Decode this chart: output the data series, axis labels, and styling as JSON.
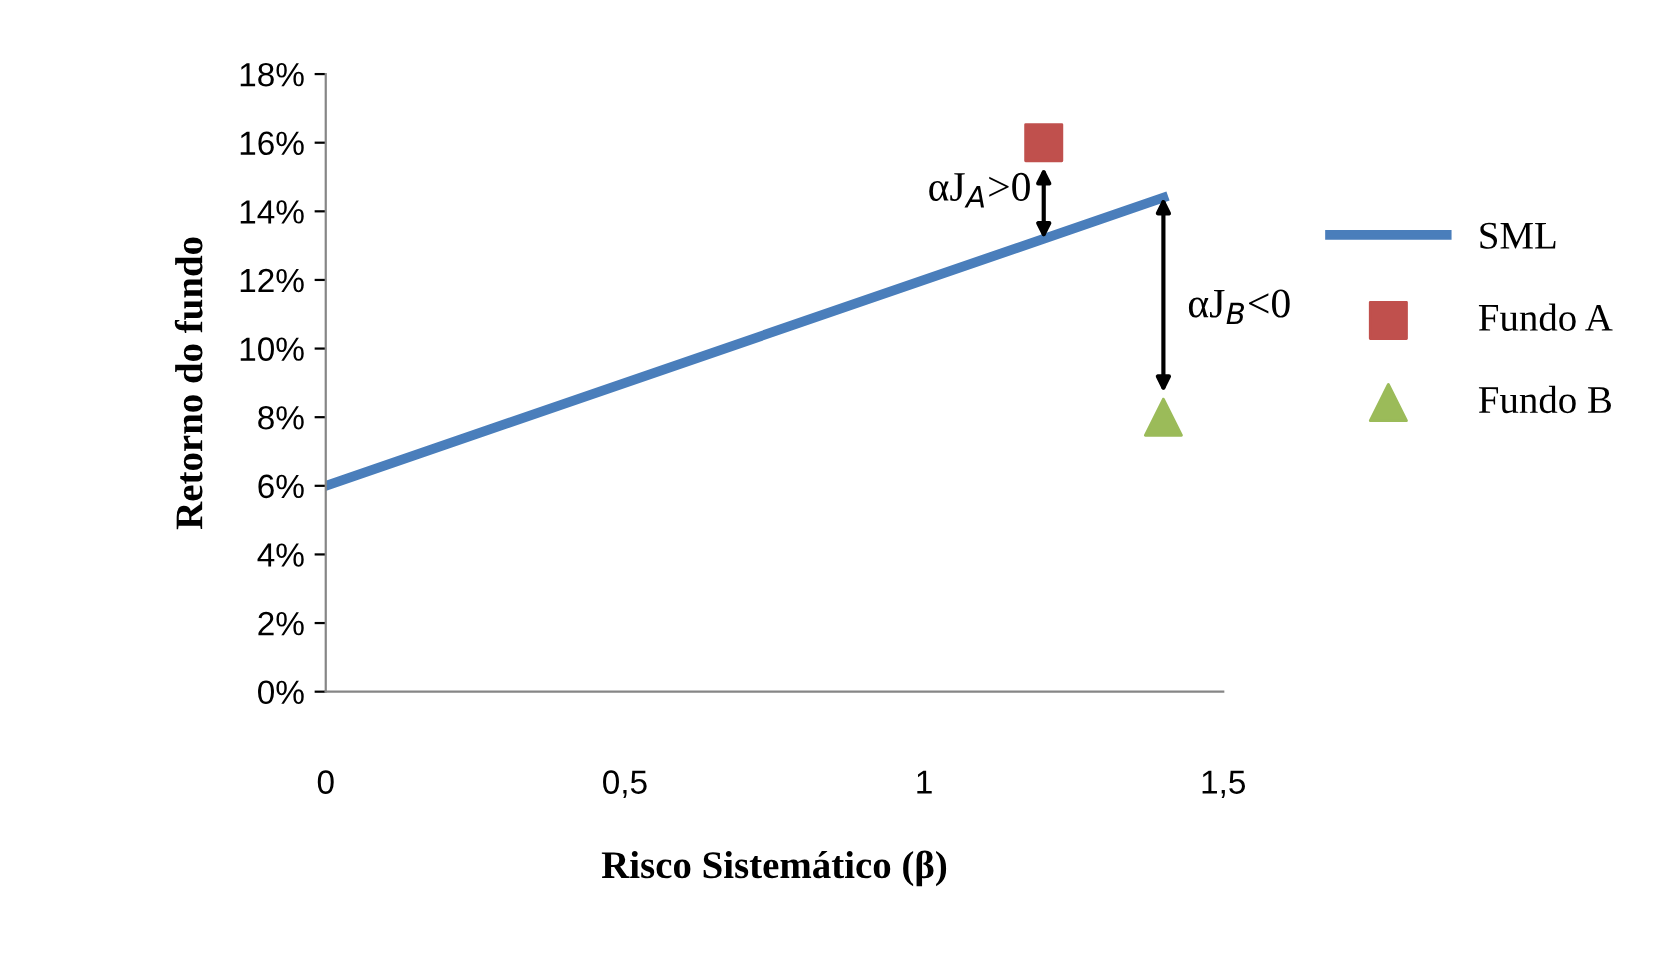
{
  "chart_data": {
    "type": "line",
    "xlabel": "Risco Sistemático (β)",
    "ylabel": "Retorno do fundo",
    "series": [
      {
        "name": "SML",
        "color": "#4a7ebb",
        "x": [
          0,
          1.4
        ],
        "values": [
          6,
          14.4
        ],
        "marker": "none"
      },
      {
        "name": "Fundo A",
        "type": "scatter",
        "color": "#c0504d",
        "x": [
          1.2
        ],
        "values": [
          16
        ],
        "marker": "square"
      },
      {
        "name": "Fundo B",
        "type": "scatter",
        "color": "#9bbb59",
        "x": [
          1.4
        ],
        "values": [
          8
        ],
        "marker": "triangle"
      }
    ],
    "annotations": [
      {
        "text": "αJ$_{A}$>0",
        "x": 1.2,
        "y": 16
      },
      {
        "text": "αJ$_{B}$<0",
        "x": 1.4,
        "y": 8
      }
    ],
    "xlim": [
      0,
      1.5
    ],
    "xticks": [
      0,
      {
        "value": 0.5,
        "label": "0,5"
      },
      1,
      {
        "value": 1.5,
        "label": "1,5"
      }
    ],
    "ylim": [
      0,
      18
    ],
    "yticks": [
      {
        "value": 0,
        "label": "0%"
      },
      {
        "value": 2,
        "label": "2%"
      },
      {
        "value": 4,
        "label": "4%"
      },
      {
        "value": 6,
        "label": "6%"
      },
      {
        "value": 8,
        "label": "8%"
      },
      {
        "value": 10,
        "label": "10%"
      },
      {
        "value": 12,
        "label": "12%"
      },
      {
        "value": 14,
        "label": "14%"
      },
      {
        "value": 16,
        "label": "16%"
      },
      {
        "value": 18,
        "label": "18%"
      }
    ],
    "grid": false,
    "legend": "right"
  }
}
